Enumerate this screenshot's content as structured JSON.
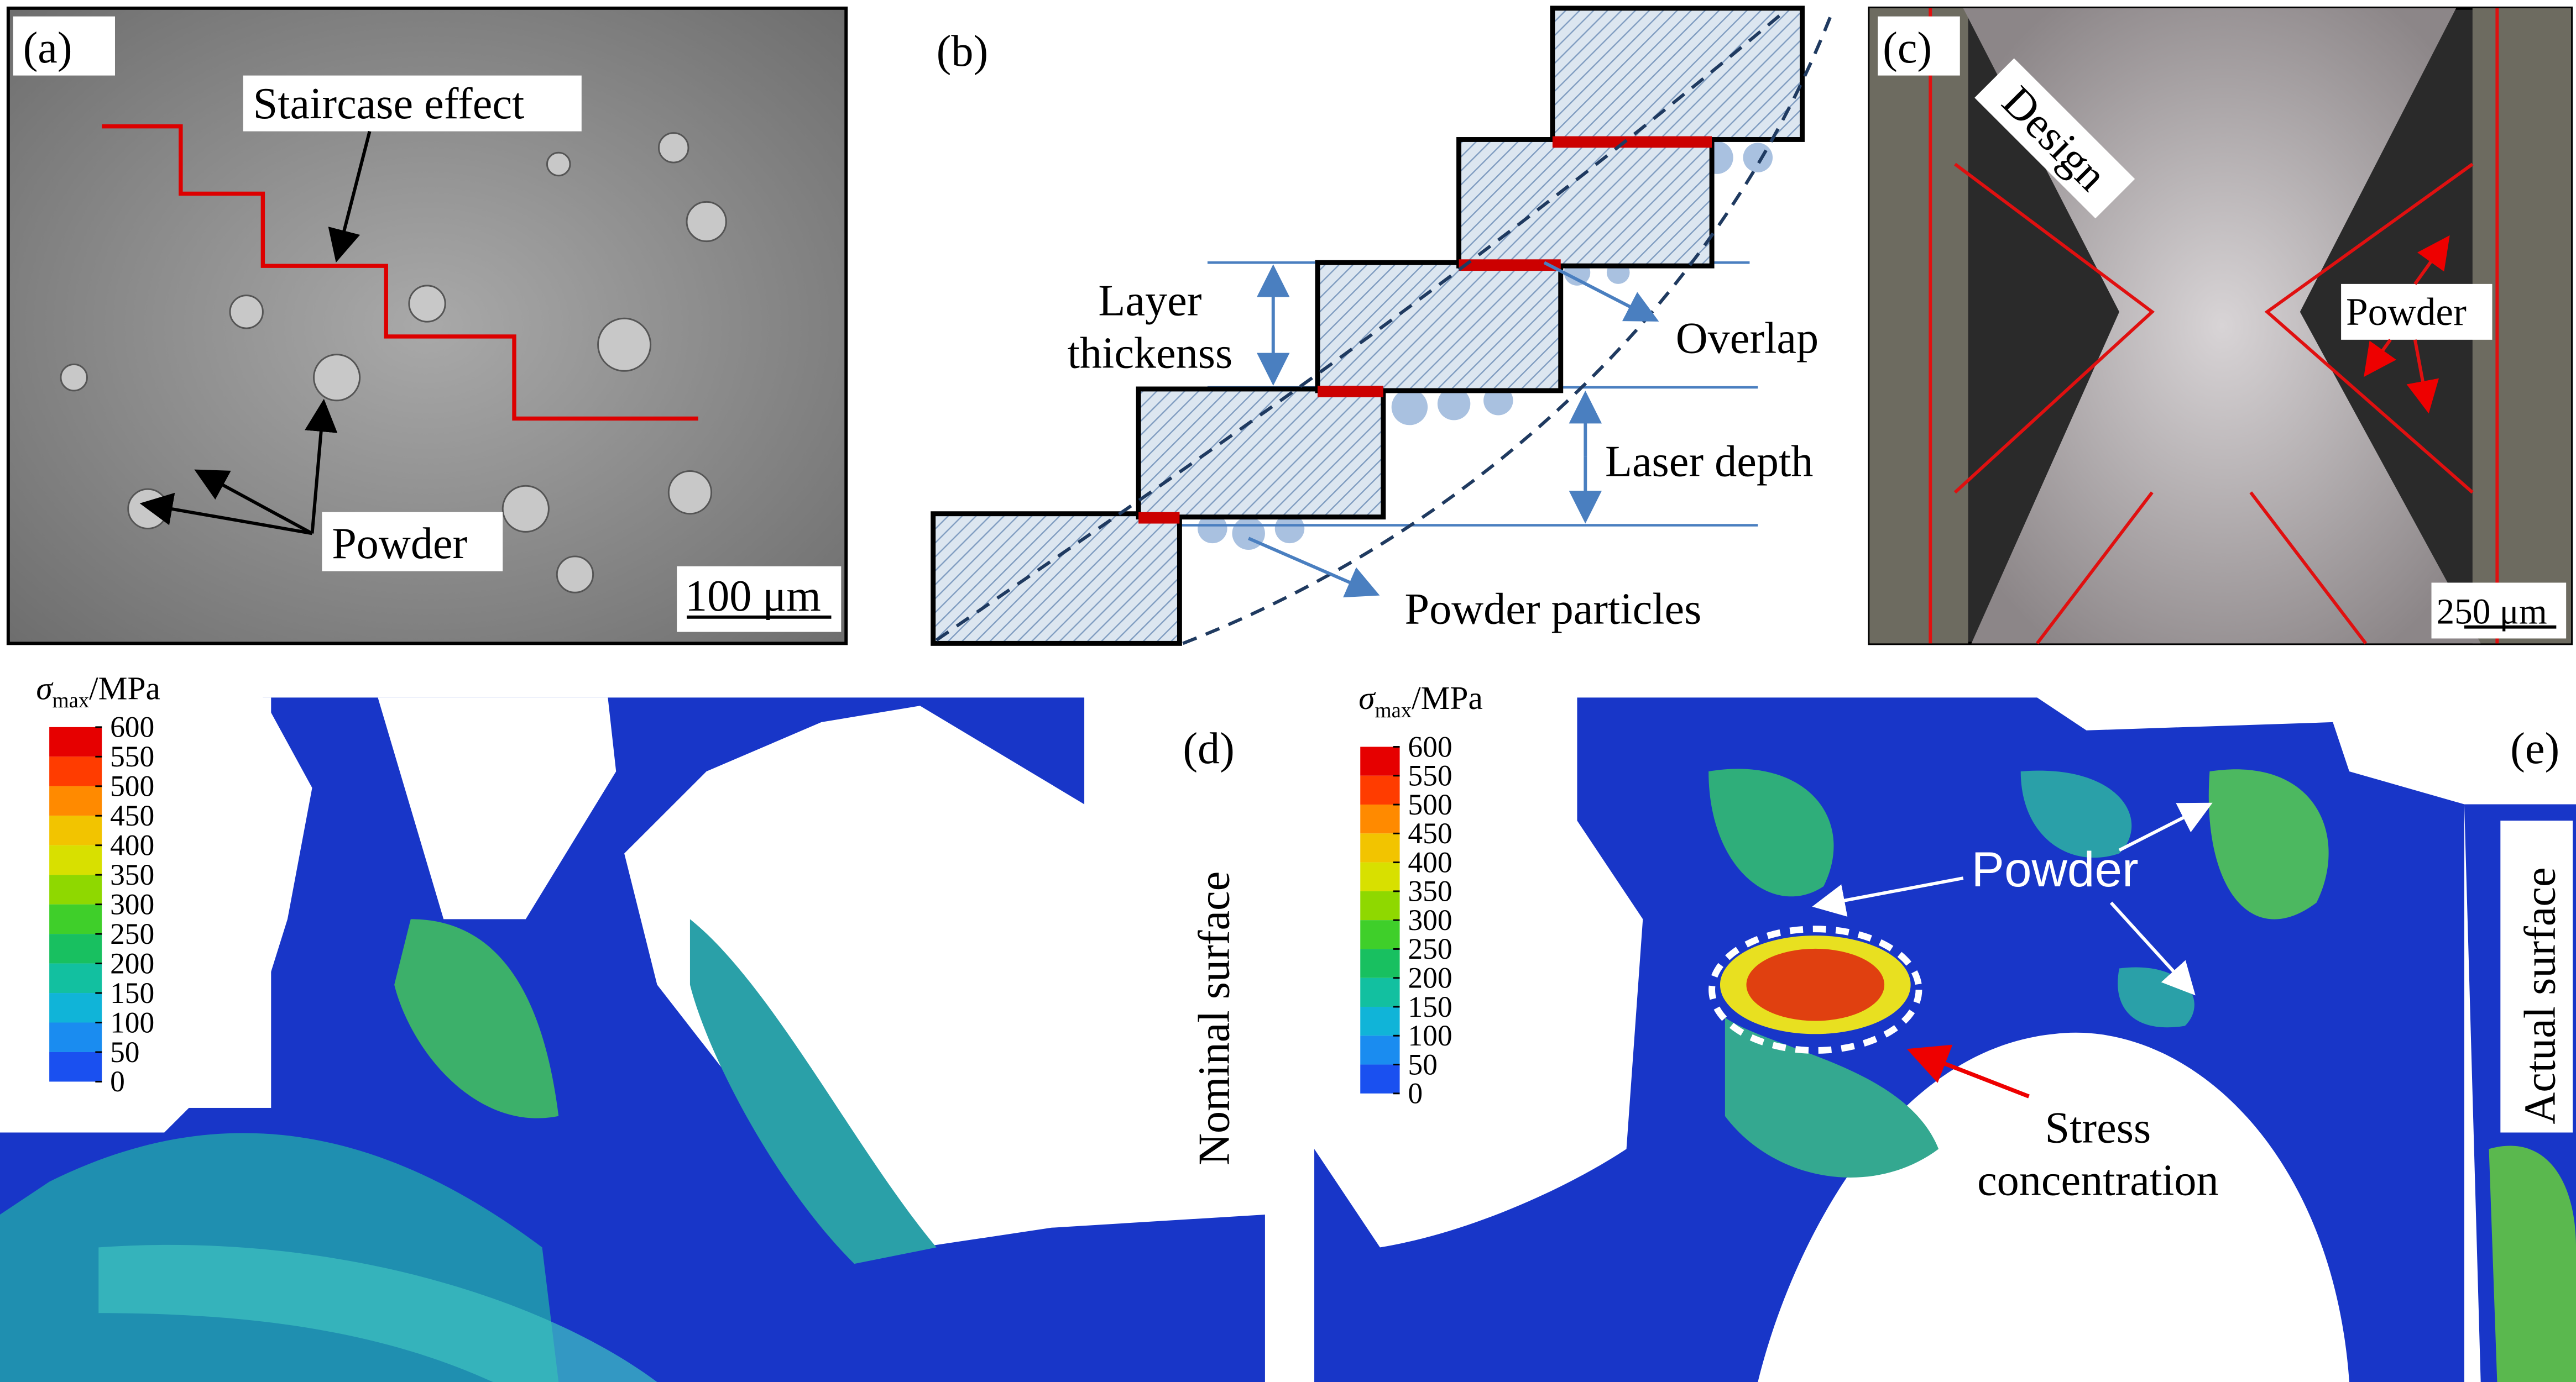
{
  "panels": {
    "a": {
      "label": "(a)",
      "staircase": "Staircase effect",
      "powder": "Powder",
      "scale_bar": "100 μm"
    },
    "b": {
      "label": "(b)",
      "layer_thickness": [
        "Layer",
        "thickenss"
      ],
      "overlap": "Overlap",
      "laser_depth": "Laser depth",
      "powder_particles": "Powder particles"
    },
    "c": {
      "label": "(c)",
      "design": "Design",
      "powder": "Powder",
      "scale_bar": "250 μm"
    },
    "d": {
      "label": "(d)",
      "side_label": "Nominal surface",
      "colorbar": {
        "symbol": "σ",
        "subscript": "max",
        "unit": "/MPa",
        "ticks": [
          600,
          550,
          500,
          450,
          400,
          350,
          300,
          250,
          200,
          150,
          100,
          50,
          0
        ]
      }
    },
    "e": {
      "label": "(e)",
      "powder": "Powder",
      "stress": [
        "Stress",
        "concentration"
      ],
      "side_label": "Actual surface",
      "colorbar": {
        "symbol": "σ",
        "subscript": "max",
        "unit": "/MPa",
        "ticks": [
          600,
          550,
          500,
          450,
          400,
          350,
          300,
          250,
          200,
          150,
          100,
          50,
          0
        ]
      }
    }
  }
}
